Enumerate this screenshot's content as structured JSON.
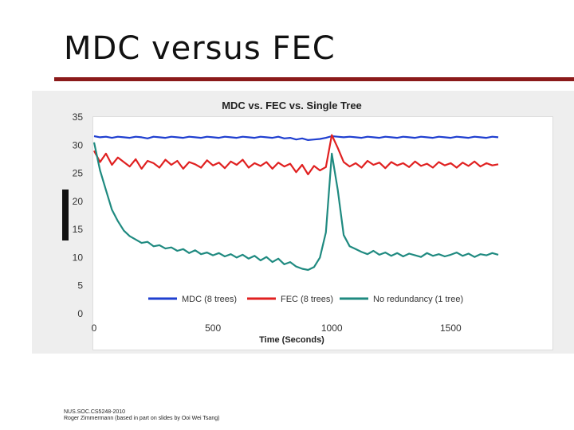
{
  "slide": {
    "title": "MDC versus FEC",
    "footer_line1": "NUS.SOC.CS5248-2010",
    "footer_line2": "Roger Zimmermann (based in part on slides by Ooi Wei Tsang)"
  },
  "colors": {
    "rule": "#8b1a1a",
    "mdc": "#1f3fd0",
    "fec": "#e02020",
    "none": "#1f8a80"
  },
  "chart_data": {
    "type": "line",
    "title": "MDC vs. FEC vs. Single Tree",
    "xlabel": "Time (Seconds)",
    "ylabel": "",
    "xlim": [
      0,
      1700
    ],
    "ylim": [
      0,
      35
    ],
    "xticks": [
      0,
      500,
      1000,
      1500
    ],
    "yticks": [
      0,
      5,
      10,
      15,
      20,
      25,
      30,
      35
    ],
    "x": [
      0,
      25,
      50,
      75,
      100,
      125,
      150,
      175,
      200,
      225,
      250,
      275,
      300,
      325,
      350,
      375,
      400,
      425,
      450,
      475,
      500,
      525,
      550,
      575,
      600,
      625,
      650,
      675,
      700,
      725,
      750,
      775,
      800,
      825,
      850,
      875,
      900,
      925,
      950,
      975,
      1000,
      1025,
      1050,
      1075,
      1100,
      1125,
      1150,
      1175,
      1200,
      1225,
      1250,
      1275,
      1300,
      1325,
      1350,
      1375,
      1400,
      1425,
      1450,
      1475,
      1500,
      1525,
      1550,
      1575,
      1600,
      1625,
      1650,
      1675,
      1700
    ],
    "series": [
      {
        "name": "MDC (8 trees)",
        "values": [
          31.6,
          31.4,
          31.5,
          31.3,
          31.5,
          31.4,
          31.3,
          31.5,
          31.4,
          31.2,
          31.5,
          31.4,
          31.3,
          31.5,
          31.4,
          31.3,
          31.5,
          31.4,
          31.3,
          31.5,
          31.4,
          31.3,
          31.5,
          31.4,
          31.3,
          31.5,
          31.4,
          31.3,
          31.5,
          31.4,
          31.3,
          31.5,
          31.2,
          31.3,
          31.0,
          31.2,
          30.9,
          31.0,
          31.1,
          31.3,
          31.6,
          31.5,
          31.4,
          31.5,
          31.4,
          31.3,
          31.5,
          31.4,
          31.3,
          31.5,
          31.4,
          31.3,
          31.5,
          31.4,
          31.3,
          31.5,
          31.4,
          31.3,
          31.5,
          31.4,
          31.3,
          31.5,
          31.4,
          31.3,
          31.5,
          31.4,
          31.3,
          31.5,
          31.4
        ]
      },
      {
        "name": "FEC (8 trees)",
        "values": [
          29.0,
          27.0,
          28.5,
          26.5,
          27.8,
          27.0,
          26.2,
          27.5,
          25.8,
          27.2,
          26.8,
          26.0,
          27.4,
          26.5,
          27.2,
          25.8,
          27.0,
          26.6,
          26.0,
          27.3,
          26.4,
          26.9,
          25.9,
          27.1,
          26.5,
          27.4,
          26.0,
          26.8,
          26.3,
          27.0,
          25.8,
          26.9,
          26.2,
          26.7,
          25.2,
          26.5,
          24.8,
          26.3,
          25.5,
          26.1,
          31.8,
          29.5,
          27.0,
          26.2,
          26.8,
          26.0,
          27.2,
          26.5,
          26.9,
          25.9,
          27.0,
          26.4,
          26.8,
          26.1,
          27.1,
          26.3,
          26.7,
          26.0,
          27.0,
          26.4,
          26.8,
          26.0,
          26.9,
          26.3,
          27.1,
          26.2,
          26.8,
          26.4,
          26.6
        ]
      },
      {
        "name": "No redundancy (1 tree)",
        "values": [
          30.5,
          25.5,
          22.0,
          18.5,
          16.5,
          14.8,
          13.8,
          13.2,
          12.6,
          12.8,
          12.0,
          12.2,
          11.6,
          11.8,
          11.2,
          11.5,
          10.8,
          11.3,
          10.6,
          10.9,
          10.4,
          10.8,
          10.2,
          10.6,
          10.0,
          10.5,
          9.8,
          10.3,
          9.5,
          10.1,
          9.2,
          9.8,
          8.8,
          9.2,
          8.4,
          8.0,
          7.8,
          8.3,
          10.0,
          14.5,
          28.5,
          22.0,
          14.0,
          12.0,
          11.5,
          11.0,
          10.6,
          11.2,
          10.5,
          10.9,
          10.3,
          10.8,
          10.2,
          10.7,
          10.4,
          10.1,
          10.8,
          10.3,
          10.6,
          10.2,
          10.5,
          10.9,
          10.3,
          10.7,
          10.1,
          10.6,
          10.4,
          10.8,
          10.5
        ]
      }
    ],
    "legend_position": "bottom-inside"
  }
}
